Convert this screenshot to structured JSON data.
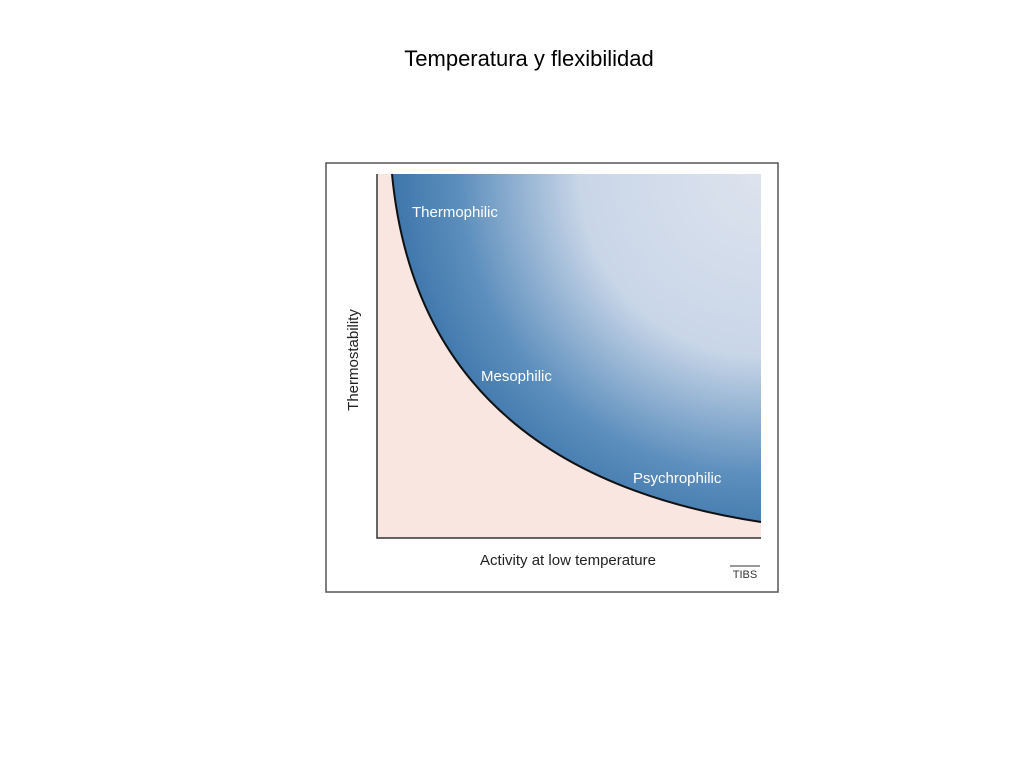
{
  "title": "Temperatura y flexibilidad",
  "figure": {
    "y_axis_label": "Thermostability",
    "x_axis_label": "Activity at low temperature",
    "regions": [
      "Thermophilic",
      "Mesophilic",
      "Psychrophilic"
    ],
    "source": "TIBS"
  }
}
